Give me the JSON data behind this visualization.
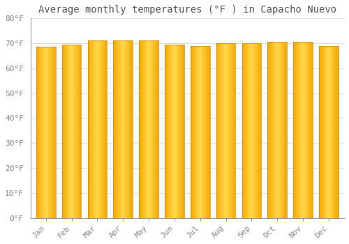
{
  "title": "Average monthly temperatures (°F ) in Capacho Nuevo",
  "months": [
    "Jan",
    "Feb",
    "Mar",
    "Apr",
    "May",
    "Jun",
    "Jul",
    "Aug",
    "Sep",
    "Oct",
    "Nov",
    "Dec"
  ],
  "values": [
    68.5,
    69.5,
    71.0,
    71.0,
    71.0,
    69.5,
    69.0,
    70.0,
    70.0,
    70.5,
    70.5,
    69.0
  ],
  "bar_color_edge": "#F5A800",
  "bar_color_center": "#FFD84D",
  "ylim": [
    0,
    80
  ],
  "yticks": [
    0,
    10,
    20,
    30,
    40,
    50,
    60,
    70,
    80
  ],
  "ytick_labels": [
    "0°F",
    "10°F",
    "20°F",
    "30°F",
    "40°F",
    "50°F",
    "60°F",
    "70°F",
    "80°F"
  ],
  "bg_color": "#FFFFFF",
  "grid_color": "#E0E0E0",
  "title_fontsize": 10,
  "tick_fontsize": 8,
  "title_color": "#555555",
  "tick_color": "#888888",
  "bar_width": 0.75,
  "bar_gap_color": "#FFFFFF"
}
